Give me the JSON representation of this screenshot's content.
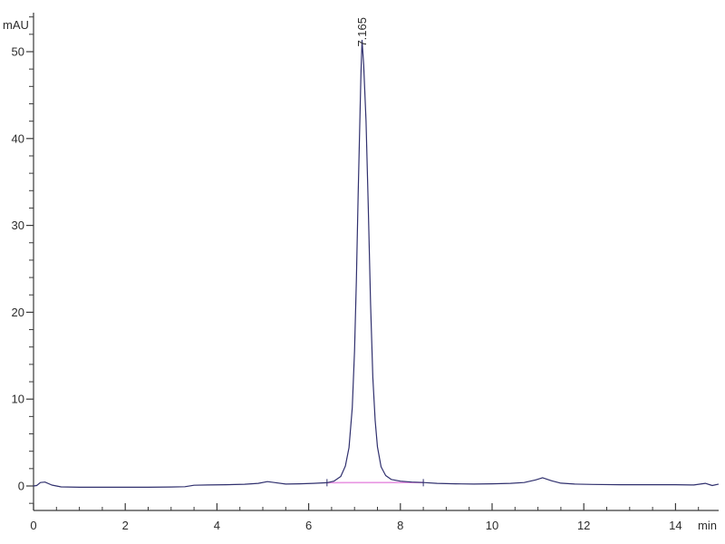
{
  "page": {
    "background_color": "#ffffff",
    "description": "HPLC chromatogram trace, single dominant peak"
  },
  "chart_data": {
    "type": "line",
    "title": "",
    "xlabel": "min",
    "ylabel": "mAU",
    "xlim": [
      0,
      15.0
    ],
    "ylim": [
      -2.8,
      54.6
    ],
    "grid": "off",
    "legend": "none",
    "x_major_ticks": [
      0,
      2,
      4,
      6,
      8,
      10,
      12,
      14
    ],
    "x_minor_tick_step": 0.5,
    "y_major_ticks": [
      0,
      10,
      20,
      30,
      40,
      50
    ],
    "y_minor_tick_step": 2,
    "colors": {
      "trace": "#30306e",
      "integration_baseline": "#e895e2",
      "axis": "#3a3a3a",
      "text": "#2b2b2b"
    },
    "series": [
      {
        "name": "uv-signal",
        "color": "#30306e",
        "points": [
          [
            0.0,
            0.0
          ],
          [
            0.07,
            0.05
          ],
          [
            0.15,
            0.4
          ],
          [
            0.25,
            0.45
          ],
          [
            0.4,
            0.1
          ],
          [
            0.6,
            -0.1
          ],
          [
            1.0,
            -0.15
          ],
          [
            1.5,
            -0.15
          ],
          [
            2.0,
            -0.15
          ],
          [
            2.5,
            -0.15
          ],
          [
            3.0,
            -0.12
          ],
          [
            3.3,
            -0.08
          ],
          [
            3.5,
            0.08
          ],
          [
            3.8,
            0.12
          ],
          [
            4.2,
            0.15
          ],
          [
            4.6,
            0.2
          ],
          [
            4.9,
            0.3
          ],
          [
            5.1,
            0.5
          ],
          [
            5.25,
            0.4
          ],
          [
            5.5,
            0.22
          ],
          [
            5.8,
            0.25
          ],
          [
            6.1,
            0.3
          ],
          [
            6.4,
            0.38
          ],
          [
            6.55,
            0.55
          ],
          [
            6.7,
            1.1
          ],
          [
            6.8,
            2.3
          ],
          [
            6.88,
            4.4
          ],
          [
            6.95,
            9.0
          ],
          [
            7.0,
            15.5
          ],
          [
            7.04,
            23.5
          ],
          [
            7.08,
            33.5
          ],
          [
            7.12,
            43.0
          ],
          [
            7.14,
            47.5
          ],
          [
            7.165,
            51.3
          ],
          [
            7.2,
            48.5
          ],
          [
            7.25,
            42.0
          ],
          [
            7.3,
            32.0
          ],
          [
            7.35,
            21.0
          ],
          [
            7.4,
            12.5
          ],
          [
            7.45,
            7.5
          ],
          [
            7.5,
            4.5
          ],
          [
            7.58,
            2.2
          ],
          [
            7.68,
            1.2
          ],
          [
            7.8,
            0.75
          ],
          [
            8.0,
            0.55
          ],
          [
            8.25,
            0.45
          ],
          [
            8.5,
            0.4
          ],
          [
            8.8,
            0.3
          ],
          [
            9.2,
            0.25
          ],
          [
            9.6,
            0.22
          ],
          [
            10.0,
            0.25
          ],
          [
            10.4,
            0.3
          ],
          [
            10.7,
            0.4
          ],
          [
            10.95,
            0.7
          ],
          [
            11.1,
            0.95
          ],
          [
            11.3,
            0.6
          ],
          [
            11.5,
            0.32
          ],
          [
            11.8,
            0.22
          ],
          [
            12.2,
            0.18
          ],
          [
            12.8,
            0.15
          ],
          [
            13.4,
            0.15
          ],
          [
            14.0,
            0.15
          ],
          [
            14.4,
            0.12
          ],
          [
            14.65,
            0.3
          ],
          [
            14.8,
            0.05
          ],
          [
            14.93,
            0.2
          ]
        ]
      },
      {
        "name": "integration-baseline",
        "color": "#e895e2",
        "points": [
          [
            6.4,
            0.38
          ],
          [
            8.5,
            0.4
          ]
        ]
      }
    ],
    "peaks": [
      {
        "label": "7.165",
        "retention_time_min": 7.165,
        "apex_mAU": 51.3,
        "integration_start_min": 6.4,
        "integration_end_min": 8.5
      }
    ],
    "integration_marker_ticks_min": [
      6.4,
      8.5
    ]
  }
}
